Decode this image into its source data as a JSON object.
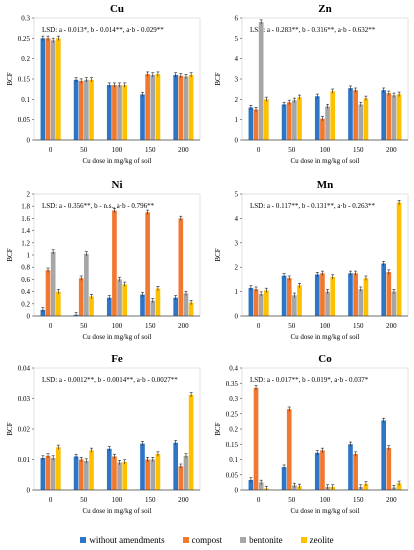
{
  "colors": {
    "without_amendments": "#2E74C7",
    "compost": "#F07830",
    "bentonite": "#A6A6A6",
    "zeolite": "#FFC000"
  },
  "legend": [
    {
      "key": "without_amendments",
      "label": "without amendments"
    },
    {
      "key": "compost",
      "label": "compost"
    },
    {
      "key": "bentonite",
      "label": "bentonite"
    },
    {
      "key": "zeolite",
      "label": "zeolite"
    }
  ],
  "chart_data": [
    {
      "type": "bar",
      "title": "Cu",
      "categories": [
        "0",
        "50",
        "100",
        "150",
        "200"
      ],
      "xlabel": "Cu dose in mg/kg of soil",
      "ylabel": "BCF",
      "ylim": [
        0,
        0.3
      ],
      "yticks": [
        "0",
        "0.05",
        "0.1",
        "0.15",
        "0.2",
        "0.25",
        "0.3"
      ],
      "annotation": "LSD: a - 0.013*, b - 0.014**, a·b - 0.029**",
      "series": [
        {
          "name": "without amendments",
          "values": [
            0.25,
            0.148,
            0.135,
            0.112,
            0.16
          ]
        },
        {
          "name": "compost",
          "values": [
            0.25,
            0.145,
            0.135,
            0.162,
            0.158
          ]
        },
        {
          "name": "bentonite",
          "values": [
            0.245,
            0.148,
            0.135,
            0.16,
            0.156
          ]
        },
        {
          "name": "zeolite",
          "values": [
            0.25,
            0.148,
            0.135,
            0.162,
            0.16
          ]
        }
      ]
    },
    {
      "type": "bar",
      "title": "Zn",
      "categories": [
        "0",
        "50",
        "100",
        "150",
        "200"
      ],
      "xlabel": "Cu dose in mg/kg of soil",
      "ylabel": "BCF",
      "ylim": [
        0,
        6
      ],
      "yticks": [
        "0",
        "1",
        "2",
        "3",
        "4",
        "5",
        "6"
      ],
      "annotation": "LSD: a - 0.283**, b - 0.316**, a·b - 0.632**",
      "series": [
        {
          "name": "without amendments",
          "values": [
            1.6,
            1.75,
            2.15,
            2.55,
            2.45
          ]
        },
        {
          "name": "compost",
          "values": [
            1.5,
            1.85,
            1.05,
            2.45,
            2.3
          ]
        },
        {
          "name": "bentonite",
          "values": [
            5.8,
            1.95,
            1.65,
            1.75,
            2.2
          ]
        },
        {
          "name": "zeolite",
          "values": [
            2.0,
            2.1,
            2.4,
            2.05,
            2.25
          ]
        }
      ]
    },
    {
      "type": "bar",
      "title": "Ni",
      "categories": [
        "0",
        "50",
        "100",
        "150",
        "200"
      ],
      "xlabel": "Cu dose in mg/kg of soil",
      "ylabel": "BCF",
      "ylim": [
        0,
        2
      ],
      "yticks": [
        "0",
        "0.2",
        "0.4",
        "0.6",
        "0.8",
        "1",
        "1.2",
        "1.4",
        "1.6",
        "1.8",
        "2"
      ],
      "annotation": "LSD: a - 0.356**, b - n.s., a·b - 0.796**",
      "series": [
        {
          "name": "without amendments",
          "values": [
            0.1,
            0.02,
            0.3,
            0.35,
            0.3
          ]
        },
        {
          "name": "compost",
          "values": [
            0.75,
            0.62,
            1.73,
            1.7,
            1.6
          ]
        },
        {
          "name": "bentonite",
          "values": [
            1.05,
            1.02,
            0.6,
            0.25,
            0.37
          ]
        },
        {
          "name": "zeolite",
          "values": [
            0.4,
            0.32,
            0.52,
            0.45,
            0.22
          ]
        }
      ]
    },
    {
      "type": "bar",
      "title": "Mn",
      "categories": [
        "0",
        "50",
        "100",
        "150",
        "200"
      ],
      "xlabel": "Cu dose in mg/kg of soil",
      "ylabel": "BCF",
      "ylim": [
        0,
        5
      ],
      "yticks": [
        "0",
        "1",
        "2",
        "3",
        "4",
        "5"
      ],
      "annotation": "LSD: a - 0.117**, b - 0.131**, a·b - 0.263**",
      "series": [
        {
          "name": "without amendments",
          "values": [
            1.15,
            1.65,
            1.7,
            1.75,
            2.15
          ]
        },
        {
          "name": "compost",
          "values": [
            1.1,
            1.55,
            1.75,
            1.75,
            1.8
          ]
        },
        {
          "name": "bentonite",
          "values": [
            0.9,
            0.85,
            1.0,
            1.1,
            1.0
          ]
        },
        {
          "name": "zeolite",
          "values": [
            1.05,
            1.25,
            1.6,
            1.55,
            4.65
          ]
        }
      ]
    },
    {
      "type": "bar",
      "title": "Fe",
      "categories": [
        "0",
        "50",
        "100",
        "150",
        "200"
      ],
      "xlabel": "Cu dose in mg/kg of soil",
      "ylabel": "BCF",
      "ylim": [
        0,
        0.04
      ],
      "yticks": [
        "0",
        "0.01",
        "0.02",
        "0.03",
        "0.04"
      ],
      "annotation": "LSD: a - 0.0012**, b - 0.0014**, a·b - 0.0027**",
      "series": [
        {
          "name": "without amendments",
          "values": [
            0.0105,
            0.011,
            0.0135,
            0.0152,
            0.0155
          ]
        },
        {
          "name": "compost",
          "values": [
            0.0112,
            0.01,
            0.011,
            0.01,
            0.0078
          ]
        },
        {
          "name": "bentonite",
          "values": [
            0.0105,
            0.0095,
            0.009,
            0.01,
            0.0112
          ]
        },
        {
          "name": "zeolite",
          "values": [
            0.014,
            0.013,
            0.0092,
            0.0118,
            0.0312
          ]
        }
      ]
    },
    {
      "type": "bar",
      "title": "Co",
      "categories": [
        "0",
        "50",
        "100",
        "150",
        "200"
      ],
      "xlabel": "Cu dose in mg/kg of soil",
      "ylabel": "BCF",
      "ylim": [
        0,
        0.4
      ],
      "yticks": [
        "0",
        "0.05",
        "0.1",
        "0.15",
        "0.2",
        "0.25",
        "0.3",
        "0.35",
        "0.4"
      ],
      "annotation": "LSD: a - 0.017**, b - 0.019*, a·b - 0.037*",
      "series": [
        {
          "name": "without amendments",
          "values": [
            0.033,
            0.075,
            0.122,
            0.15,
            0.228
          ]
        },
        {
          "name": "compost",
          "values": [
            0.335,
            0.265,
            0.13,
            0.118,
            0.138
          ]
        },
        {
          "name": "bentonite",
          "values": [
            0.025,
            0.015,
            0.01,
            0.01,
            0.008
          ]
        },
        {
          "name": "zeolite",
          "values": [
            0.005,
            0.012,
            0.01,
            0.02,
            0.022
          ]
        }
      ]
    }
  ]
}
